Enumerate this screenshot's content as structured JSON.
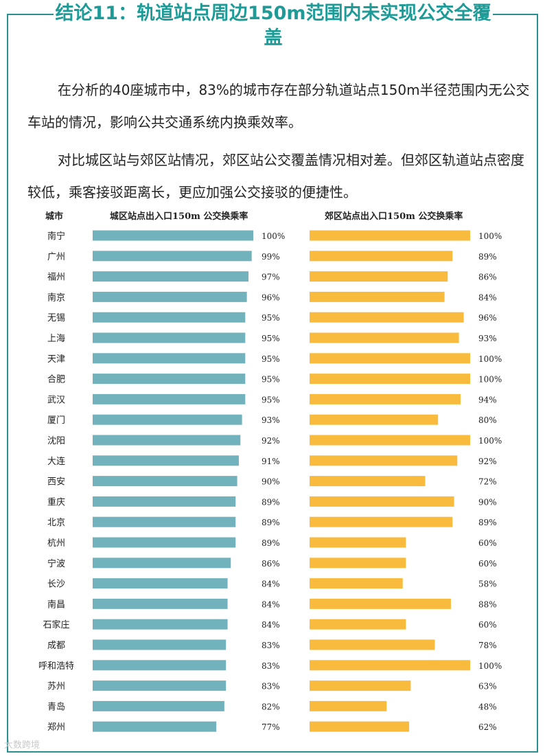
{
  "title": "结论11：轨道站点周边150m范围内未实现公交全覆盖",
  "paragraphs": [
    "在分析的40座城市中，83%的城市存在部分轨道站点150m半径范围内无公交车站的情况，影响公共交通系统内换乘效率。",
    "对比城区站与郊区站情况，郊区站公交覆盖情况相对差。但郊区轨道站点密度较低，乘客接驳距离长，更应加强公交接驳的便捷性。"
  ],
  "table_headers": {
    "city": "城市",
    "urban": "城区站点出入口150m 公交换乘率",
    "suburban": "郊区站点出入口150m 公交换乘率"
  },
  "colors": {
    "urban": "#72b2bc",
    "suburban": "#f9bb3d",
    "accent": "#2a8f91"
  },
  "watermark": "大数跨境",
  "chart_data": {
    "type": "bar",
    "categories": [
      "南宁",
      "广州",
      "福州",
      "南京",
      "无锡",
      "上海",
      "天津",
      "合肥",
      "武汉",
      "厦门",
      "沈阳",
      "大连",
      "西安",
      "重庆",
      "北京",
      "杭州",
      "宁波",
      "长沙",
      "南昌",
      "石家庄",
      "成都",
      "呼和浩特",
      "苏州",
      "青岛",
      "郑州"
    ],
    "series": [
      {
        "name": "城区站点出入口150m 公交换乘率",
        "values": [
          100,
          99,
          97,
          96,
          95,
          95,
          95,
          95,
          95,
          93,
          92,
          91,
          90,
          89,
          89,
          89,
          86,
          84,
          84,
          84,
          83,
          83,
          83,
          82,
          77
        ]
      },
      {
        "name": "郊区站点出入口150m 公交换乘率",
        "values": [
          100,
          89,
          86,
          84,
          96,
          93,
          100,
          100,
          94,
          80,
          100,
          92,
          72,
          90,
          89,
          60,
          60,
          58,
          88,
          60,
          78,
          100,
          63,
          48,
          62
        ]
      }
    ],
    "value_labels": {
      "urban": [
        "100%",
        "99%",
        "97%",
        "96%",
        "95%",
        "95%",
        "95%",
        "95%",
        "95%",
        "93%",
        "92%",
        "91%",
        "90%",
        "89%",
        "89%",
        "89%",
        "86%",
        "84%",
        "84%",
        "84%",
        "83%",
        "83%",
        "83%",
        "82%",
        "77%"
      ],
      "suburban": [
        "100%",
        "89%",
        "86%",
        "84%",
        "96%",
        "93%",
        "100%",
        "100%",
        "94%",
        "80%",
        "100%",
        "92%",
        "72%",
        "90%",
        "89%",
        "60%",
        "60%",
        "58%",
        "88%",
        "60%",
        "78%",
        "100%",
        "63%",
        "48%",
        "62%"
      ]
    },
    "xlim": [
      0,
      100
    ],
    "grid": false
  }
}
